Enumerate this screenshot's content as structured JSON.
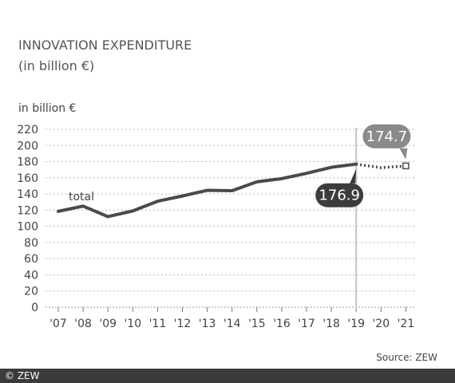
{
  "chart_data": {
    "type": "line",
    "title_line1": "INNOVATION EXPENDITURE",
    "title_line2": "(in billion €)",
    "ylabel": "in billion €",
    "ylim": [
      0,
      220
    ],
    "yticks": [
      0,
      20,
      40,
      60,
      80,
      100,
      120,
      140,
      160,
      180,
      200,
      220
    ],
    "categories": [
      "'07",
      "'08",
      "'09",
      "'10",
      "'11",
      "'12",
      "'13",
      "'14",
      "'15",
      "'16",
      "'17",
      "'18",
      "'19",
      "'20",
      "'21"
    ],
    "grid": true,
    "series": [
      {
        "name": "total",
        "values": [
          118.5,
          125,
          112,
          119,
          131,
          137.5,
          144.5,
          144,
          155,
          159,
          165.5,
          173,
          176.9,
          null,
          null
        ],
        "projection": [
          null,
          null,
          null,
          null,
          null,
          null,
          null,
          null,
          null,
          null,
          null,
          null,
          176.9,
          172.5,
          174.7
        ],
        "color": "#4a4a4a"
      }
    ],
    "annotations": [
      {
        "label": "176.9",
        "category_index": 12,
        "value": 176.9,
        "placement": "below"
      },
      {
        "label": "174.7",
        "category_index": 14,
        "value": 174.7,
        "placement": "above"
      }
    ],
    "reference_line_category_index": 12
  },
  "source": "Source: ZEW",
  "copyright": "© ZEW"
}
